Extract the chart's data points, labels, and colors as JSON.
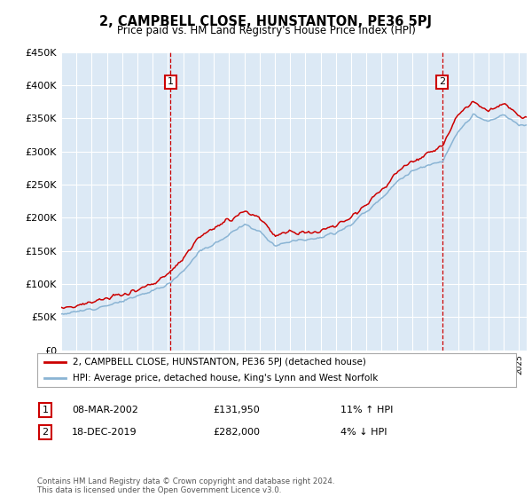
{
  "title": "2, CAMPBELL CLOSE, HUNSTANTON, PE36 5PJ",
  "subtitle": "Price paid vs. HM Land Registry's House Price Index (HPI)",
  "legend_red": "2, CAMPBELL CLOSE, HUNSTANTON, PE36 5PJ (detached house)",
  "legend_blue": "HPI: Average price, detached house, King's Lynn and West Norfolk",
  "annotation1_date": "08-MAR-2002",
  "annotation1_price": "£131,950",
  "annotation1_hpi": "11% ↑ HPI",
  "annotation1_year": 2002.17,
  "annotation2_date": "18-DEC-2019",
  "annotation2_price": "£282,000",
  "annotation2_hpi": "4% ↓ HPI",
  "annotation2_year": 2019.96,
  "footnote": "Contains HM Land Registry data © Crown copyright and database right 2024.\nThis data is licensed under the Open Government Licence v3.0.",
  "plot_bg_color": "#dce9f5",
  "red_color": "#cc0000",
  "blue_color": "#8ab4d4",
  "ylim": [
    0,
    450000
  ],
  "yticks": [
    0,
    50000,
    100000,
    150000,
    200000,
    250000,
    300000,
    350000,
    400000,
    450000
  ]
}
